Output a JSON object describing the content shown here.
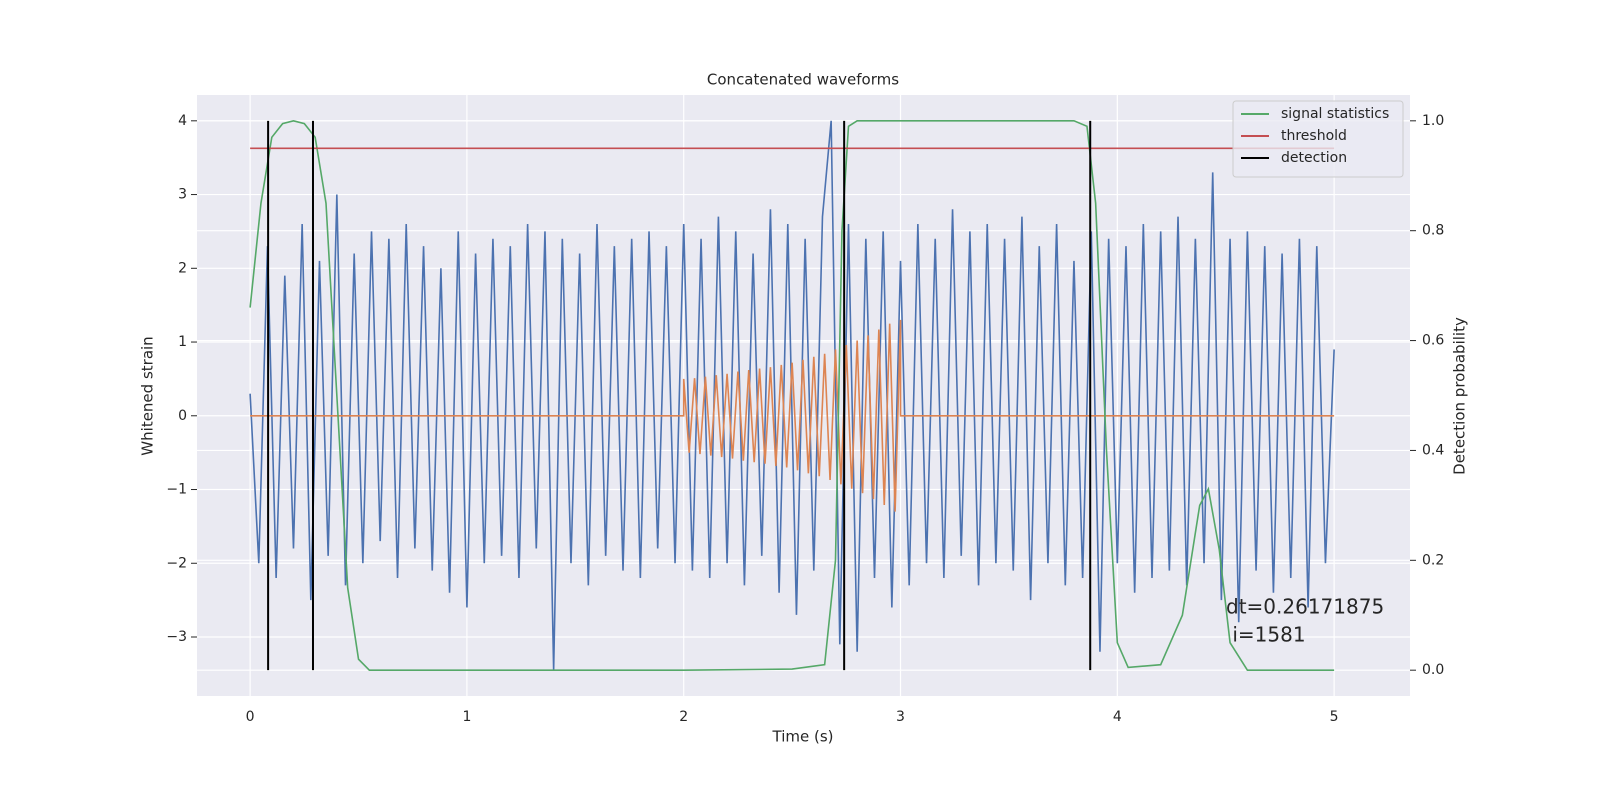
{
  "chart_data": {
    "type": "line",
    "title": "Concatenated waveforms",
    "xlabel": "Time (s)",
    "ylabel": "Whitened strain",
    "y2label": "Detection probability",
    "xlim": [
      -0.245,
      5.35
    ],
    "ylim": [
      -3.8,
      4.35
    ],
    "y2lim": [
      -0.047,
      1.047
    ],
    "xticks": [
      0,
      1,
      2,
      3,
      4,
      5
    ],
    "yticks": [
      {
        "value": -3,
        "label": "−3"
      },
      {
        "value": -2,
        "label": "−2"
      },
      {
        "value": -1,
        "label": "−1"
      },
      0,
      1,
      2,
      3,
      4
    ],
    "y2ticks": [
      {
        "value": 0,
        "label": "0.0"
      },
      {
        "value": 0.2,
        "label": "0.2"
      },
      {
        "value": 0.4,
        "label": "0.4"
      },
      {
        "value": 0.6,
        "label": "0.6"
      },
      {
        "value": 0.8,
        "label": "0.8"
      },
      {
        "value": 1,
        "label": "1.0"
      }
    ],
    "grid": true,
    "legend": "upper right",
    "series": [
      {
        "color": "#4c72b0",
        "x": [
          0,
          0.04,
          0.08,
          0.12,
          0.16,
          0.2,
          0.24,
          0.28,
          0.32,
          0.36,
          0.4,
          0.44,
          0.48,
          0.52,
          0.56,
          0.6,
          0.64,
          0.68,
          0.72,
          0.76,
          0.8,
          0.84,
          0.88,
          0.92,
          0.96,
          1,
          1.04,
          1.08,
          1.12,
          1.16,
          1.2,
          1.24,
          1.28,
          1.32,
          1.36,
          1.4,
          1.44,
          1.48,
          1.52,
          1.56,
          1.6,
          1.64,
          1.68,
          1.72,
          1.76,
          1.8,
          1.84,
          1.88,
          1.92,
          1.96,
          2,
          2.04,
          2.08,
          2.12,
          2.16,
          2.2,
          2.24,
          2.28,
          2.32,
          2.36,
          2.4,
          2.44,
          2.48,
          2.52,
          2.56,
          2.6,
          2.64,
          2.68,
          2.72,
          2.76,
          2.8,
          2.84,
          2.88,
          2.92,
          2.96,
          3,
          3.04,
          3.08,
          3.12,
          3.16,
          3.2,
          3.24,
          3.28,
          3.32,
          3.36,
          3.4,
          3.44,
          3.48,
          3.52,
          3.56,
          3.6,
          3.64,
          3.68,
          3.72,
          3.76,
          3.8,
          3.84,
          3.88,
          3.92,
          3.96,
          4,
          4.04,
          4.08,
          4.12,
          4.16,
          4.2,
          4.24,
          4.28,
          4.32,
          4.36,
          4.4,
          4.44,
          4.48,
          4.52,
          4.56,
          4.6,
          4.64,
          4.68,
          4.72,
          4.76,
          4.8,
          4.84,
          4.88,
          4.92,
          4.96,
          5
        ],
        "values": [
          0.3,
          -2.0,
          2.3,
          -2.2,
          1.9,
          -1.8,
          2.6,
          -2.5,
          2.1,
          -1.9,
          3.0,
          -2.3,
          2.2,
          -2.0,
          2.5,
          -1.7,
          2.4,
          -2.2,
          2.6,
          -1.8,
          2.3,
          -2.1,
          2.0,
          -2.4,
          2.5,
          -2.6,
          2.2,
          -2.0,
          2.4,
          -1.9,
          2.3,
          -2.2,
          2.6,
          -1.8,
          2.5,
          -3.45,
          2.4,
          -2.0,
          2.2,
          -2.3,
          2.6,
          -1.9,
          2.3,
          -2.1,
          2.4,
          -2.2,
          2.5,
          -1.8,
          2.3,
          -2.0,
          2.6,
          -2.1,
          2.4,
          -2.2,
          2.7,
          -2.0,
          2.5,
          -2.3,
          2.2,
          -1.9,
          2.8,
          -2.4,
          2.6,
          -2.7,
          2.4,
          -2.1,
          2.7,
          4.0,
          -3.1,
          2.6,
          -3.2,
          2.4,
          -2.2,
          2.5,
          -2.6,
          2.1,
          -2.3,
          2.6,
          -2.0,
          2.4,
          -2.2,
          2.8,
          -1.9,
          2.5,
          -2.3,
          2.6,
          -2.0,
          2.4,
          -2.1,
          2.7,
          -2.5,
          2.3,
          -2.0,
          2.6,
          -2.3,
          2.1,
          -2.2,
          2.5,
          -3.2,
          2.4,
          -2.0,
          2.3,
          -2.4,
          2.6,
          -2.2,
          2.5,
          -2.1,
          2.7,
          -2.3,
          2.4,
          -2.0,
          3.3,
          -2.5,
          2.4,
          -2.8,
          2.5,
          -2.1,
          2.3,
          -2.4,
          2.2,
          -2.2,
          2.4,
          -2.6,
          2.3,
          -2.0,
          0.9
        ]
      },
      {
        "color": "#dd8452",
        "x": [
          0,
          2,
          2,
          2.025,
          2.05,
          2.075,
          2.1,
          2.125,
          2.15,
          2.175,
          2.2,
          2.225,
          2.25,
          2.275,
          2.3,
          2.325,
          2.35,
          2.375,
          2.4,
          2.425,
          2.45,
          2.475,
          2.5,
          2.525,
          2.55,
          2.575,
          2.6,
          2.625,
          2.65,
          2.675,
          2.7,
          2.725,
          2.75,
          2.775,
          2.8,
          2.825,
          2.85,
          2.875,
          2.9,
          2.925,
          2.95,
          2.975,
          3,
          3,
          5
        ],
        "values": [
          0,
          0,
          0.5,
          -0.5,
          0.51,
          -0.52,
          0.53,
          -0.54,
          0.55,
          -0.56,
          0.57,
          -0.58,
          0.6,
          -0.61,
          0.62,
          -0.63,
          0.64,
          -0.65,
          0.66,
          -0.68,
          0.69,
          -0.7,
          0.72,
          -0.74,
          0.76,
          -0.78,
          0.8,
          -0.82,
          0.84,
          -0.87,
          0.9,
          -0.93,
          0.96,
          -0.99,
          1.02,
          -1.05,
          1.09,
          -1.13,
          1.17,
          -1.21,
          1.25,
          -1.3,
          1.3,
          0,
          0
        ]
      },
      {
        "name": "signal statistics",
        "color": "#55a868",
        "axis": "y2",
        "x": [
          0,
          0.05,
          0.1,
          0.15,
          0.2,
          0.25,
          0.3,
          0.35,
          0.4,
          0.45,
          0.5,
          0.55,
          1,
          2,
          2.5,
          2.65,
          2.7,
          2.73,
          2.76,
          2.8,
          3.5,
          3.8,
          3.86,
          3.9,
          3.95,
          4,
          4.05,
          4.2,
          4.3,
          4.38,
          4.42,
          4.47,
          4.52,
          4.6,
          5
        ],
        "values": [
          0.66,
          0.85,
          0.97,
          0.995,
          1,
          0.995,
          0.97,
          0.85,
          0.5,
          0.15,
          0.02,
          0,
          0,
          0,
          0.002,
          0.01,
          0.2,
          0.8,
          0.99,
          1,
          1,
          1,
          0.99,
          0.85,
          0.4,
          0.05,
          0.005,
          0.01,
          0.1,
          0.3,
          0.33,
          0.22,
          0.05,
          0,
          0
        ]
      },
      {
        "name": "threshold",
        "color": "#c44e52",
        "axis": "y2",
        "x": [
          0,
          5
        ],
        "values": [
          0.95,
          0.95
        ]
      },
      {
        "name": "detection",
        "color": "#000000",
        "axis": "y2",
        "kind": "vlines",
        "x": [
          0.083,
          0.29,
          2.74,
          3.875
        ],
        "ymin": 0,
        "ymax": 1
      }
    ],
    "annotation": [
      "dt=0.26171875",
      " i=1581"
    ]
  }
}
